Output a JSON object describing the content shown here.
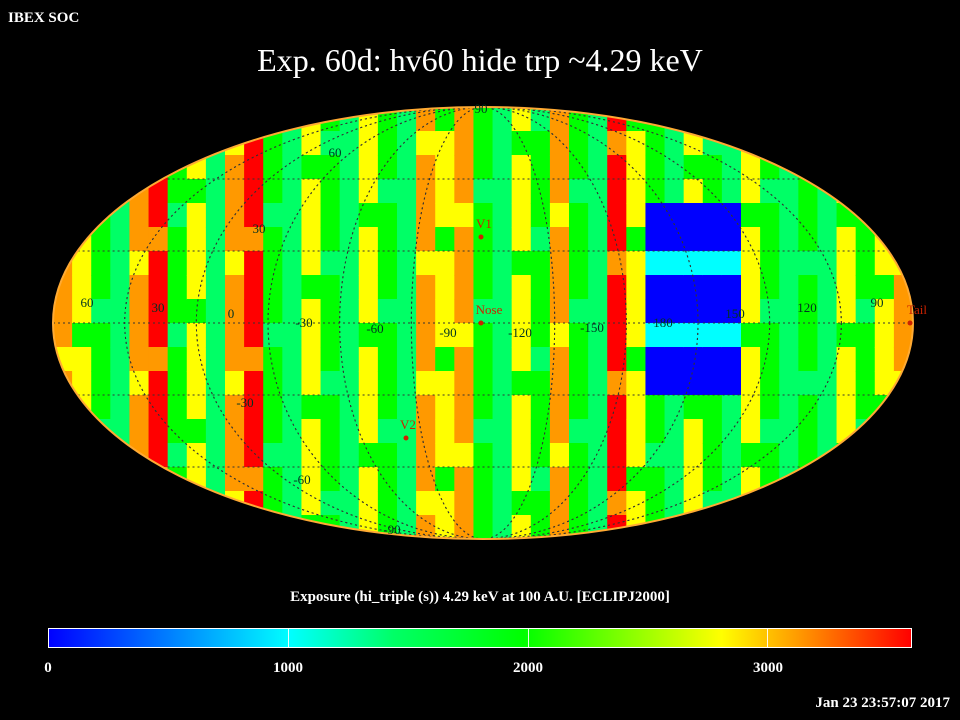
{
  "header": {
    "label": "IBEX SOC"
  },
  "title": "Exp.   60d: hv60 hide trp ~4.29 keV",
  "map": {
    "projection": "Mollweide",
    "lat_labels": [
      "90",
      "60",
      "30",
      "30",
      "60",
      "30",
      "0",
      "-30",
      "-30",
      "-60",
      "-90"
    ],
    "lon_labels": [
      "60",
      "30",
      "0",
      "-30",
      "-60",
      "-90",
      "-120",
      "-150",
      "180",
      "150",
      "120",
      "90"
    ],
    "markers": [
      {
        "label": "V1",
        "color": "#cc2200"
      },
      {
        "label": "Nose",
        "color": "#cc2200"
      },
      {
        "label": "V2",
        "color": "#cc2200"
      },
      {
        "label": "Tail",
        "color": "#cc2200"
      }
    ],
    "palette": [
      "#0000ff",
      "#00ffff",
      "#00ff66",
      "#00ff00",
      "#ffff00",
      "#ff9900",
      "#ff0000"
    ]
  },
  "colorbar": {
    "title": "Exposure (hi_triple (s))  4.29 keV at 100 A.U. [ECLIPJ2000]",
    "range": [
      0,
      3600
    ],
    "tick_labels": [
      "0",
      "1000",
      "2000",
      "3000"
    ],
    "tick_values": [
      0,
      1000,
      2000,
      3000
    ]
  },
  "timestamp": "Jan 23 23:57:07 2017"
}
